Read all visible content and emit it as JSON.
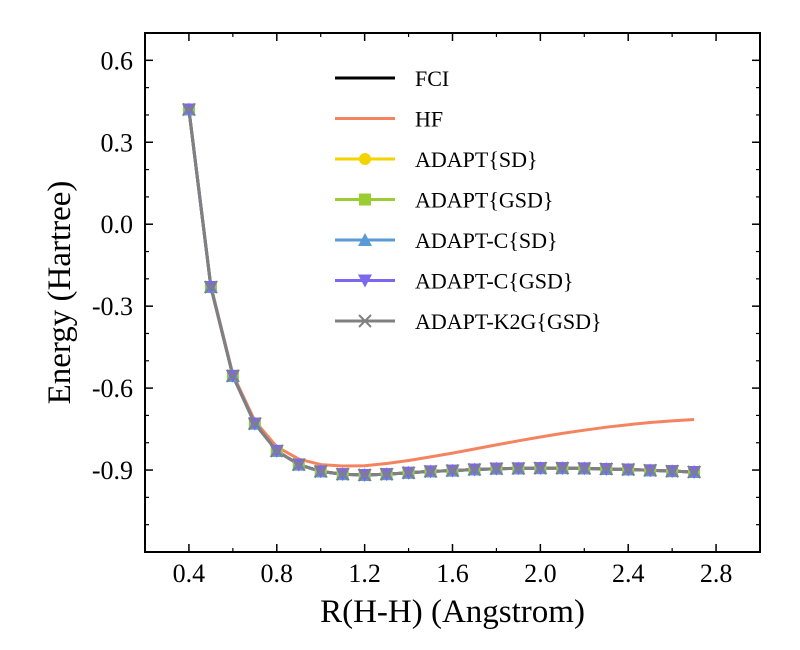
{
  "chart_data": {
    "type": "line",
    "xlabel": "R(H-H) (Angstrom)",
    "ylabel": "Energy (Hartree)",
    "xlim": [
      0.2,
      3.0
    ],
    "ylim": [
      -1.2,
      0.7
    ],
    "xticks": [
      0.4,
      0.8,
      1.2,
      1.6,
      2.0,
      2.4,
      2.8
    ],
    "xtick_labels": [
      "0.4",
      "0.8",
      "1.2",
      "1.6",
      "2.0",
      "2.4",
      "2.8"
    ],
    "yticks": [
      0.6,
      0.3,
      0.0,
      -0.3,
      -0.6,
      -0.9
    ],
    "ytick_labels": [
      "0.6",
      "0.3",
      "0.0",
      "-0.3",
      "-0.6",
      "-0.9"
    ],
    "legend_position": "upper-center",
    "x": [
      0.4,
      0.5,
      0.6,
      0.7,
      0.8,
      0.9,
      1.0,
      1.1,
      1.2,
      1.3,
      1.4,
      1.5,
      1.6,
      1.7,
      1.8,
      1.9,
      2.0,
      2.1,
      2.2,
      2.3,
      2.4,
      2.5,
      2.6,
      2.7
    ],
    "series": [
      {
        "name": "FCI",
        "color": "#000000",
        "marker": "none",
        "values": [
          0.42,
          -0.23,
          -0.555,
          -0.73,
          -0.83,
          -0.88,
          -0.905,
          -0.915,
          -0.918,
          -0.915,
          -0.91,
          -0.905,
          -0.902,
          -0.898,
          -0.895,
          -0.894,
          -0.893,
          -0.893,
          -0.894,
          -0.896,
          -0.898,
          -0.901,
          -0.904,
          -0.907
        ]
      },
      {
        "name": "HF",
        "color": "#f4845f",
        "marker": "none",
        "values": [
          0.42,
          -0.225,
          -0.55,
          -0.72,
          -0.815,
          -0.86,
          -0.88,
          -0.885,
          -0.884,
          -0.876,
          -0.865,
          -0.852,
          -0.838,
          -0.823,
          -0.808,
          -0.793,
          -0.779,
          -0.766,
          -0.754,
          -0.743,
          -0.734,
          -0.726,
          -0.72,
          -0.715
        ]
      },
      {
        "name": "ADAPT{SD}",
        "color": "#f5d300",
        "marker": "circle",
        "values": [
          0.42,
          -0.23,
          -0.555,
          -0.73,
          -0.83,
          -0.88,
          -0.905,
          -0.915,
          -0.918,
          -0.915,
          -0.91,
          -0.905,
          -0.902,
          -0.898,
          -0.895,
          -0.894,
          -0.893,
          -0.893,
          -0.894,
          -0.896,
          -0.898,
          -0.901,
          -0.904,
          -0.907
        ]
      },
      {
        "name": "ADAPT{GSD}",
        "color": "#9acd32",
        "marker": "square",
        "values": [
          0.42,
          -0.23,
          -0.555,
          -0.73,
          -0.83,
          -0.88,
          -0.905,
          -0.915,
          -0.918,
          -0.915,
          -0.91,
          -0.905,
          -0.902,
          -0.898,
          -0.895,
          -0.894,
          -0.893,
          -0.893,
          -0.894,
          -0.896,
          -0.898,
          -0.901,
          -0.904,
          -0.907
        ]
      },
      {
        "name": "ADAPT-C{SD}",
        "color": "#5b9bd5",
        "marker": "triangle-up",
        "values": [
          0.42,
          -0.23,
          -0.555,
          -0.73,
          -0.83,
          -0.88,
          -0.905,
          -0.915,
          -0.918,
          -0.915,
          -0.91,
          -0.905,
          -0.902,
          -0.898,
          -0.895,
          -0.894,
          -0.893,
          -0.893,
          -0.894,
          -0.896,
          -0.898,
          -0.901,
          -0.904,
          -0.907
        ]
      },
      {
        "name": "ADAPT-C{GSD}",
        "color": "#7b68ee",
        "marker": "triangle-down",
        "values": [
          0.42,
          -0.23,
          -0.555,
          -0.73,
          -0.83,
          -0.88,
          -0.905,
          -0.915,
          -0.918,
          -0.915,
          -0.91,
          -0.905,
          -0.902,
          -0.898,
          -0.895,
          -0.894,
          -0.893,
          -0.893,
          -0.894,
          -0.896,
          -0.898,
          -0.901,
          -0.904,
          -0.907
        ]
      },
      {
        "name": "ADAPT-K2G{GSD}",
        "color": "#808080",
        "marker": "x",
        "values": [
          0.42,
          -0.23,
          -0.555,
          -0.73,
          -0.83,
          -0.88,
          -0.905,
          -0.915,
          -0.918,
          -0.915,
          -0.91,
          -0.905,
          -0.902,
          -0.898,
          -0.895,
          -0.894,
          -0.893,
          -0.893,
          -0.894,
          -0.896,
          -0.898,
          -0.901,
          -0.904,
          -0.907
        ]
      }
    ]
  }
}
